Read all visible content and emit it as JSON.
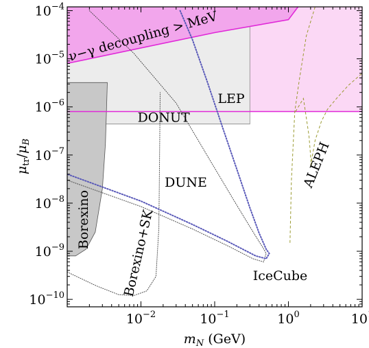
{
  "chart_data": {
    "type": "area",
    "xlabel": "m_N (GeV)",
    "ylabel": "μ_tr/μ_B",
    "xscale": "log",
    "yscale": "log",
    "xlim": [
      0.001,
      10
    ],
    "ylim": [
      7e-11,
      0.00012
    ],
    "grid": false,
    "x_ticks": [
      {
        "value": 0.01,
        "mant": "10",
        "exp": "−2"
      },
      {
        "value": 0.1,
        "mant": "10",
        "exp": "−1"
      },
      {
        "value": 1,
        "mant": "10",
        "exp": "0"
      },
      {
        "value": 10,
        "mant": "10",
        "exp": "1"
      }
    ],
    "y_ticks": [
      {
        "value": 1e-10,
        "mant": "10",
        "exp": "−10"
      },
      {
        "value": 1e-09,
        "mant": "10",
        "exp": "−9"
      },
      {
        "value": 1e-08,
        "mant": "10",
        "exp": "−8"
      },
      {
        "value": 1e-07,
        "mant": "10",
        "exp": "−7"
      },
      {
        "value": 1e-06,
        "mant": "10",
        "exp": "−6"
      },
      {
        "value": 1e-05,
        "mant": "10",
        "exp": "−5"
      },
      {
        "value": 0.0001,
        "mant": "10",
        "exp": "−4"
      }
    ],
    "regions": [
      {
        "name": "lep",
        "fill": "#fbd8f5",
        "points": [
          [
            0.001,
            8e-07
          ],
          [
            10,
            8e-07
          ],
          [
            10,
            0.00012
          ],
          [
            0.001,
            0.00012
          ]
        ]
      },
      {
        "name": "donut",
        "fill": "#ececec",
        "stroke": "#888888",
        "points": [
          [
            0.001,
            4.4e-07
          ],
          [
            0.3,
            4.4e-07
          ],
          [
            0.3,
            0.00012
          ],
          [
            0.001,
            0.00012
          ]
        ]
      },
      {
        "name": "decoupling",
        "fill": "#f2a6ec",
        "points": [
          [
            0.001,
            8e-06
          ],
          [
            0.1,
            3.5e-05
          ],
          [
            1,
            6.5e-05
          ],
          [
            1.35,
            0.00012
          ],
          [
            0.001,
            0.00012
          ]
        ]
      },
      {
        "name": "borexino",
        "fill": "#c8c8c8",
        "stroke": "#555555",
        "points": [
          [
            0.001,
            3.2e-06
          ],
          [
            0.0035,
            3.2e-06
          ],
          [
            0.0033,
            1.7e-07
          ],
          [
            0.003,
            2e-08
          ],
          [
            0.0024,
            2.5e-09
          ],
          [
            0.0018,
            1.1e-09
          ],
          [
            0.0013,
            8e-10
          ],
          [
            0.001,
            8e-10
          ]
        ]
      }
    ],
    "lines": [
      {
        "name": "decoupling-boundary",
        "color": "#e028d8",
        "width": 1.6,
        "style": "solid",
        "points": [
          [
            0.001,
            8e-06
          ],
          [
            0.1,
            3.5e-05
          ],
          [
            1,
            6.5e-05
          ],
          [
            1.35,
            0.00012
          ]
        ]
      },
      {
        "name": "lep-boundary",
        "color": "#e028d8",
        "width": 1.6,
        "style": "solid",
        "points": [
          [
            0.001,
            8e-07
          ],
          [
            10,
            8e-07
          ]
        ]
      },
      {
        "name": "borexino-sk",
        "color": "#444444",
        "width": 1.0,
        "style": "dotted",
        "points": [
          [
            0.001,
            3.7e-10
          ],
          [
            0.0025,
            1.9e-10
          ],
          [
            0.005,
            1.25e-10
          ],
          [
            0.008,
            1.2e-10
          ],
          [
            0.012,
            1.5e-10
          ],
          [
            0.016,
            3e-10
          ],
          [
            0.0175,
            3e-09
          ],
          [
            0.018,
            2e-07
          ],
          [
            0.0182,
            2e-06
          ]
        ]
      },
      {
        "name": "dune",
        "color": "#444444",
        "width": 1.0,
        "style": "dotted",
        "points": [
          [
            0.002,
            0.0001
          ],
          [
            0.008,
            1.3e-05
          ],
          [
            0.03,
            1.2e-06
          ],
          [
            0.09,
            7e-08
          ],
          [
            0.2,
            9e-09
          ],
          [
            0.35,
            2.2e-09
          ],
          [
            0.45,
            1.2e-09
          ],
          [
            0.5,
            9e-10
          ],
          [
            0.46,
            6e-10
          ],
          [
            0.33,
            7e-10
          ],
          [
            0.15,
            1.3e-09
          ],
          [
            0.05,
            2.9e-09
          ],
          [
            0.01,
            8.5e-09
          ],
          [
            0.001,
            3e-08
          ]
        ]
      },
      {
        "name": "icecube",
        "color": "#5858b8",
        "width": 2.0,
        "style": "dotted",
        "points": [
          [
            0.034,
            0.0001
          ],
          [
            0.05,
            2.5e-05
          ],
          [
            0.08,
            3.2e-06
          ],
          [
            0.13,
            3.5e-07
          ],
          [
            0.2,
            5e-08
          ],
          [
            0.3,
            8e-09
          ],
          [
            0.4,
            2.4e-09
          ],
          [
            0.5,
            1.1e-09
          ],
          [
            0.55,
            9e-10
          ],
          [
            0.5,
            7e-10
          ],
          [
            0.36,
            8e-10
          ],
          [
            0.15,
            1.6e-09
          ],
          [
            0.05,
            3.6e-09
          ],
          [
            0.01,
            1.1e-08
          ],
          [
            0.001,
            4e-08
          ]
        ]
      },
      {
        "name": "aleph-1",
        "color": "#9a9a30",
        "width": 1.0,
        "style": "dashed",
        "points": [
          [
            1.05,
            1.5e-09
          ],
          [
            1.1,
            3e-08
          ],
          [
            1.22,
            8e-07
          ],
          [
            1.4,
            3.5e-06
          ],
          [
            1.75,
            3e-05
          ],
          [
            2.3,
            0.00012
          ]
        ]
      },
      {
        "name": "aleph-2",
        "color": "#9a9a30",
        "width": 1.0,
        "style": "dashed",
        "points": [
          [
            1.25,
            8e-07
          ],
          [
            1.6,
            1.5e-06
          ],
          [
            1.9,
            2.5e-07
          ],
          [
            2.05,
            6e-08
          ]
        ]
      },
      {
        "name": "aleph-3",
        "color": "#9a9a30",
        "width": 1.0,
        "style": "dashed",
        "points": [
          [
            2.0,
            6e-08
          ],
          [
            2.3,
            2e-07
          ],
          [
            2.8,
            5e-07
          ],
          [
            3.4,
            9e-07
          ],
          [
            4.5,
            1.5e-06
          ],
          [
            6.5,
            2.8e-06
          ],
          [
            10,
            5e-06
          ]
        ]
      }
    ],
    "annotations": [
      {
        "name": "decoupling-label",
        "text": "ν−γ decoupling > MeV",
        "x": 0.0011,
        "y": 9e-06,
        "angle": -15.5
      },
      {
        "name": "lep-label",
        "text": "LEP",
        "x": 0.11,
        "y": 1.2e-06,
        "angle": 0
      },
      {
        "name": "donut-label",
        "text": "DONUT",
        "x": 0.009,
        "y": 4.9e-07,
        "angle": 0
      },
      {
        "name": "dune-label",
        "text": "DUNE",
        "x": 0.021,
        "y": 2.2e-08,
        "angle": 0
      },
      {
        "name": "borexino-sk-label",
        "text": "Borexino+SK",
        "x": 0.0077,
        "y": 1.1e-10,
        "angle": -77
      },
      {
        "name": "borexino-label",
        "text": "Borexino",
        "x": 0.0019,
        "y": 1.1e-09,
        "angle": -90
      },
      {
        "name": "icecube-label",
        "text": "IceCube",
        "x": 0.33,
        "y": 2.5e-10,
        "angle": 0
      },
      {
        "name": "aleph-label",
        "text": "ALEPH",
        "x": 2.05,
        "y": 2e-08,
        "angle": -68
      }
    ]
  }
}
